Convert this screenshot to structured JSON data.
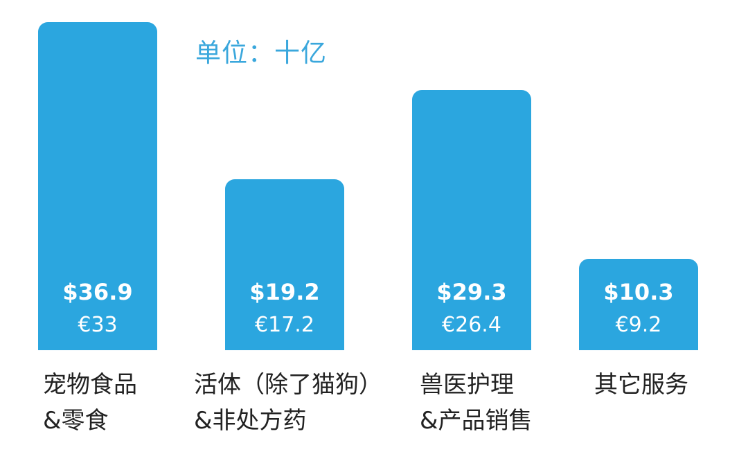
{
  "chart_data": {
    "type": "bar",
    "title": "",
    "unit_note": "单位：十亿",
    "categories": [
      [
        "宠物食品",
        "&零食"
      ],
      [
        "活体（除了猫狗）",
        "&非处方药"
      ],
      [
        "兽医护理",
        "&产品销售"
      ],
      [
        "其它服务"
      ]
    ],
    "series": [
      {
        "values": [
          36.9,
          19.2,
          29.3,
          10.3
        ]
      },
      {
        "values": [
          33,
          17.2,
          26.4,
          9.2
        ]
      }
    ],
    "value_labels_usd": [
      "$36.9",
      "$19.2",
      "$29.3",
      "$10.3"
    ],
    "value_labels_eur": [
      "€33",
      "€17.2",
      "€26.4",
      "€9.2"
    ],
    "ylim": [
      0,
      36.9
    ],
    "grid": false,
    "bar_color": "#2ba6df"
  }
}
